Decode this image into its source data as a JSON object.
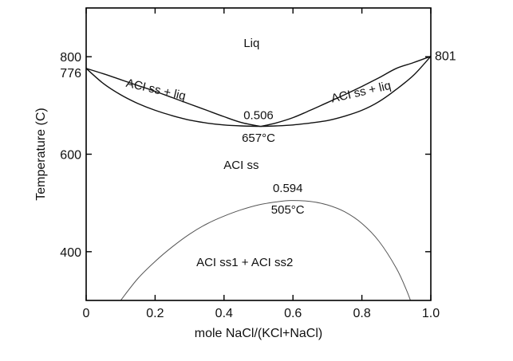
{
  "chart_data": {
    "type": "line",
    "title": "",
    "xlabel": "mole NaCl/(KCl+NaCl)",
    "ylabel": "Temperature (C)",
    "xlim": [
      0,
      1.0
    ],
    "ylim": [
      300,
      900
    ],
    "grid": false,
    "legend": "none",
    "x_ticks": [
      {
        "value": 0,
        "label": "0"
      },
      {
        "value": 0.2,
        "label": "0.2"
      },
      {
        "value": 0.4,
        "label": "0.4"
      },
      {
        "value": 0.6,
        "label": "0.6"
      },
      {
        "value": 0.8,
        "label": "0.8"
      },
      {
        "value": 1.0,
        "label": "1.0"
      }
    ],
    "y_ticks": [
      {
        "value": 400,
        "label": "400"
      },
      {
        "value": 600,
        "label": "600"
      },
      {
        "value": 800,
        "label": "800"
      }
    ],
    "series": [
      {
        "x": [
          0,
          0.05,
          0.1,
          0.15,
          0.2,
          0.25,
          0.3,
          0.35,
          0.4,
          0.45,
          0.506
        ],
        "y": [
          776,
          765,
          753,
          741,
          729,
          716,
          703,
          690,
          677,
          665,
          657
        ]
      },
      {
        "x": [
          0.506,
          0.55,
          0.6,
          0.65,
          0.7,
          0.75,
          0.8,
          0.85,
          0.9,
          0.95,
          1.0
        ],
        "y": [
          657,
          664,
          675,
          690,
          706,
          722,
          739,
          757,
          776,
          788,
          801
        ]
      },
      {
        "x": [
          0,
          0.05,
          0.1,
          0.15,
          0.2,
          0.25,
          0.3,
          0.35,
          0.4,
          0.45,
          0.506
        ],
        "y": [
          776,
          745,
          722,
          704,
          690,
          679,
          670,
          664,
          660,
          658,
          657
        ]
      },
      {
        "x": [
          0.506,
          0.55,
          0.6,
          0.65,
          0.7,
          0.75,
          0.8,
          0.85,
          0.9,
          0.95,
          1.0
        ],
        "y": [
          657,
          658,
          660,
          664,
          669,
          678,
          690,
          708,
          733,
          762,
          801
        ]
      },
      {
        "x": [
          0.1,
          0.15,
          0.2,
          0.25,
          0.3,
          0.35,
          0.4,
          0.45,
          0.5,
          0.55,
          0.594,
          0.65,
          0.7,
          0.75,
          0.8,
          0.85,
          0.9,
          0.93,
          0.95
        ],
        "y": [
          300,
          345,
          380,
          410,
          436,
          457,
          473,
          486,
          496,
          502,
          505,
          503,
          496,
          482,
          458,
          421,
          366,
          320,
          282
        ]
      }
    ],
    "endpoint_labels": [
      {
        "text": "776",
        "x": 0,
        "y": 776,
        "side": "left"
      },
      {
        "text": "801",
        "x": 1.0,
        "y": 801,
        "side": "right"
      }
    ],
    "annotations": [
      {
        "text": "Liq",
        "x": 0.48,
        "y": 820
      },
      {
        "text": "ACI ss + liq",
        "x": 0.2,
        "y": 725,
        "rotate": 13
      },
      {
        "text": "ACI ss + liq",
        "x": 0.8,
        "y": 720,
        "rotate": -13
      },
      {
        "text": "0.506",
        "x": 0.5,
        "y": 672
      },
      {
        "text": "657°C",
        "x": 0.5,
        "y": 625
      },
      {
        "text": "ACI ss",
        "x": 0.45,
        "y": 570
      },
      {
        "text": "0.594",
        "x": 0.585,
        "y": 522
      },
      {
        "text": "505°C",
        "x": 0.585,
        "y": 478
      },
      {
        "text": "ACI ss1 + ACI ss2",
        "x": 0.46,
        "y": 370
      }
    ]
  }
}
